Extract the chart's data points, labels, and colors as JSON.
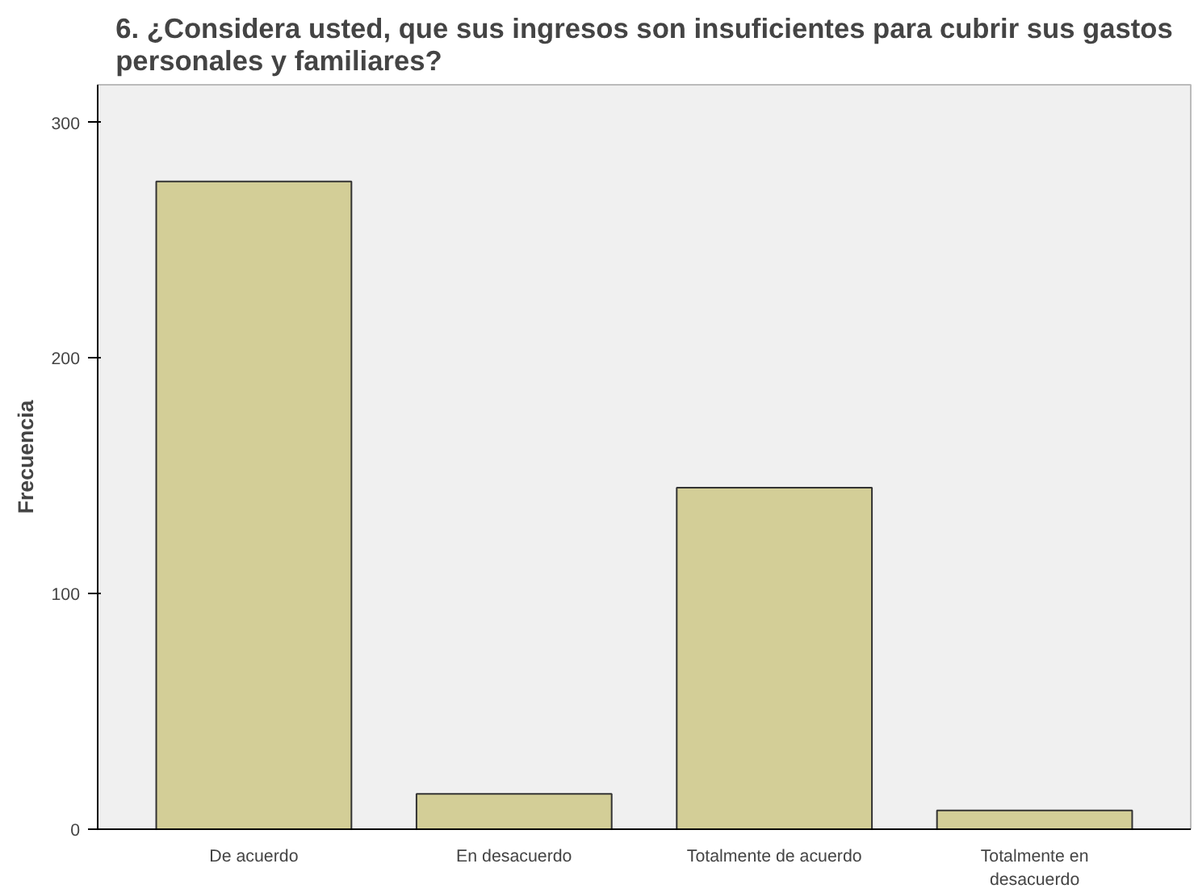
{
  "chart_data": {
    "type": "bar",
    "title": "6. ¿Considera usted, que sus ingresos son insuficientes para cubrir sus gastos personales y familiares?",
    "ylabel": "Frecuencia",
    "categories": [
      "De acuerdo",
      "En desacuerdo",
      "Totalmente de acuerdo",
      "Totalmente en desacuerdo"
    ],
    "values": [
      275,
      15,
      145,
      8
    ],
    "color": "#d3ce97",
    "ylim": [
      0,
      316
    ],
    "yticks": [
      0,
      100,
      200,
      300
    ],
    "grid": false
  }
}
